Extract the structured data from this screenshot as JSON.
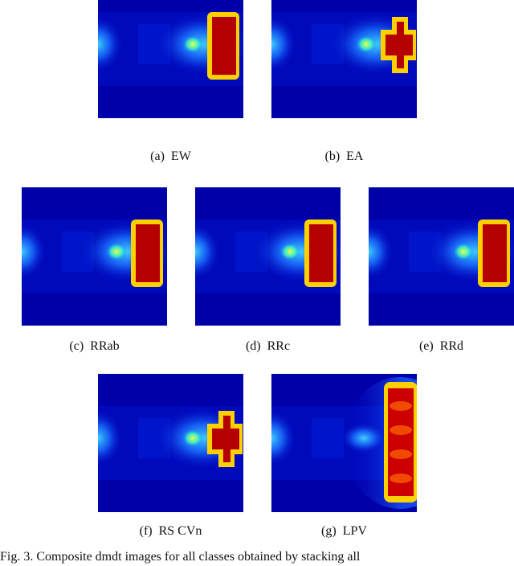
{
  "figure": {
    "panels": [
      {
        "caption": "(a)  EW"
      },
      {
        "caption": "(b)  EA"
      },
      {
        "caption": "(c)  RRab"
      },
      {
        "caption": "(d)  RRc"
      },
      {
        "caption": "(e)  RRd"
      },
      {
        "caption": "(f)  RS CVn"
      },
      {
        "caption": "(g)  LPV"
      }
    ],
    "caption": "Fig. 3.   Composite dmdt images for all classes obtained by stacking all"
  }
}
